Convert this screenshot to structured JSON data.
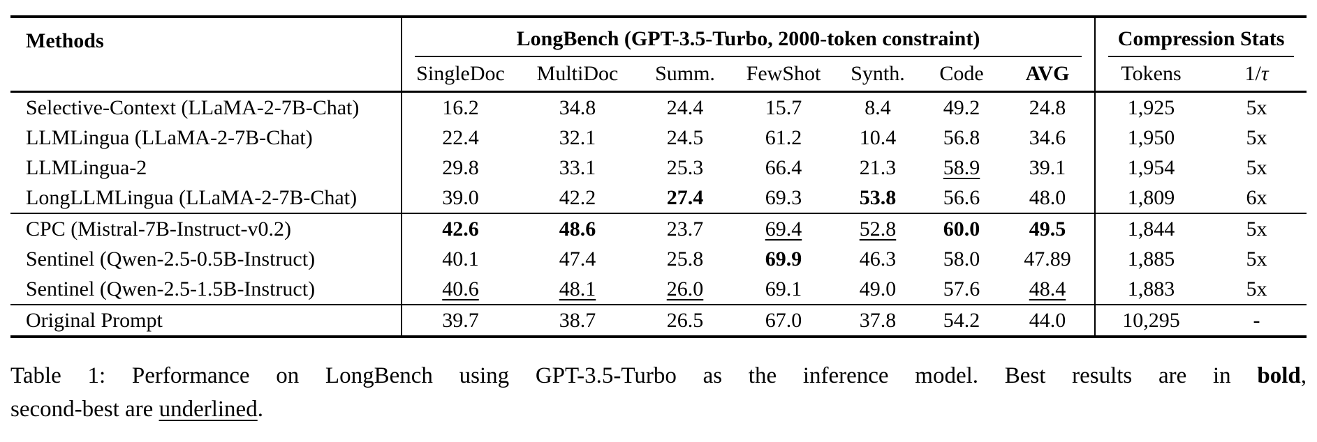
{
  "table": {
    "methods_header": "Methods",
    "group_headers": {
      "longbench": "LongBench (GPT-3.5-Turbo, 2000-token constraint)",
      "compression": "Compression Stats"
    },
    "columns": [
      "SingleDoc",
      "MultiDoc",
      "Summ.",
      "FewShot",
      "Synth.",
      "Code",
      "AVG",
      "Tokens",
      "1/τ"
    ],
    "groups": [
      {
        "rows": [
          {
            "method": "Selective-Context (LLaMA-2-7B-Chat)",
            "cells": [
              {
                "v": "16.2"
              },
              {
                "v": "34.8"
              },
              {
                "v": "24.4"
              },
              {
                "v": "15.7"
              },
              {
                "v": "8.4"
              },
              {
                "v": "49.2"
              },
              {
                "v": "24.8"
              },
              {
                "v": "1,925"
              },
              {
                "v": "5x"
              }
            ]
          },
          {
            "method": "LLMLingua (LLaMA-2-7B-Chat)",
            "cells": [
              {
                "v": "22.4"
              },
              {
                "v": "32.1"
              },
              {
                "v": "24.5"
              },
              {
                "v": "61.2"
              },
              {
                "v": "10.4"
              },
              {
                "v": "56.8"
              },
              {
                "v": "34.6"
              },
              {
                "v": "1,950"
              },
              {
                "v": "5x"
              }
            ]
          },
          {
            "method": "LLMLingua-2",
            "cells": [
              {
                "v": "29.8"
              },
              {
                "v": "33.1"
              },
              {
                "v": "25.3"
              },
              {
                "v": "66.4"
              },
              {
                "v": "21.3"
              },
              {
                "v": "58.9",
                "s": "u"
              },
              {
                "v": "39.1"
              },
              {
                "v": "1,954"
              },
              {
                "v": "5x"
              }
            ]
          },
          {
            "method": "LongLLMLingua (LLaMA-2-7B-Chat)",
            "cells": [
              {
                "v": "39.0"
              },
              {
                "v": "42.2"
              },
              {
                "v": "27.4",
                "s": "b"
              },
              {
                "v": "69.3"
              },
              {
                "v": "53.8",
                "s": "b"
              },
              {
                "v": "56.6"
              },
              {
                "v": "48.0"
              },
              {
                "v": "1,809"
              },
              {
                "v": "6x"
              }
            ]
          }
        ]
      },
      {
        "rows": [
          {
            "method": "CPC (Mistral-7B-Instruct-v0.2)",
            "cells": [
              {
                "v": "42.6",
                "s": "b"
              },
              {
                "v": "48.6",
                "s": "b"
              },
              {
                "v": "23.7"
              },
              {
                "v": "69.4",
                "s": "u"
              },
              {
                "v": "52.8",
                "s": "u"
              },
              {
                "v": "60.0",
                "s": "b"
              },
              {
                "v": "49.5",
                "s": "b"
              },
              {
                "v": "1,844"
              },
              {
                "v": "5x"
              }
            ]
          },
          {
            "method": "Sentinel (Qwen-2.5-0.5B-Instruct)",
            "cells": [
              {
                "v": "40.1"
              },
              {
                "v": "47.4"
              },
              {
                "v": "25.8"
              },
              {
                "v": "69.9",
                "s": "b"
              },
              {
                "v": "46.3"
              },
              {
                "v": "58.0"
              },
              {
                "v": "47.89"
              },
              {
                "v": "1,885"
              },
              {
                "v": "5x"
              }
            ]
          },
          {
            "method": "Sentinel (Qwen-2.5-1.5B-Instruct)",
            "cells": [
              {
                "v": "40.6",
                "s": "u"
              },
              {
                "v": "48.1",
                "s": "u"
              },
              {
                "v": "26.0",
                "s": "u"
              },
              {
                "v": "69.1"
              },
              {
                "v": "49.0"
              },
              {
                "v": "57.6"
              },
              {
                "v": "48.4",
                "s": "u"
              },
              {
                "v": "1,883"
              },
              {
                "v": "5x"
              }
            ]
          }
        ]
      },
      {
        "rows": [
          {
            "method": "Original Prompt",
            "cells": [
              {
                "v": "39.7"
              },
              {
                "v": "38.7"
              },
              {
                "v": "26.5"
              },
              {
                "v": "67.0"
              },
              {
                "v": "37.8"
              },
              {
                "v": "54.2"
              },
              {
                "v": "44.0"
              },
              {
                "v": "10,295"
              },
              {
                "v": "-"
              }
            ]
          }
        ]
      }
    ]
  },
  "caption": {
    "line1_text_a": "Table 1:  Performance on LongBench using GPT-3.5-Turbo as the inference model.  Best results are in ",
    "line1_bold_word": "bold",
    "line1_text_b": ",",
    "line2_text_a": "second-best are ",
    "line2_underline_word": "underlined",
    "line2_text_b": "."
  }
}
